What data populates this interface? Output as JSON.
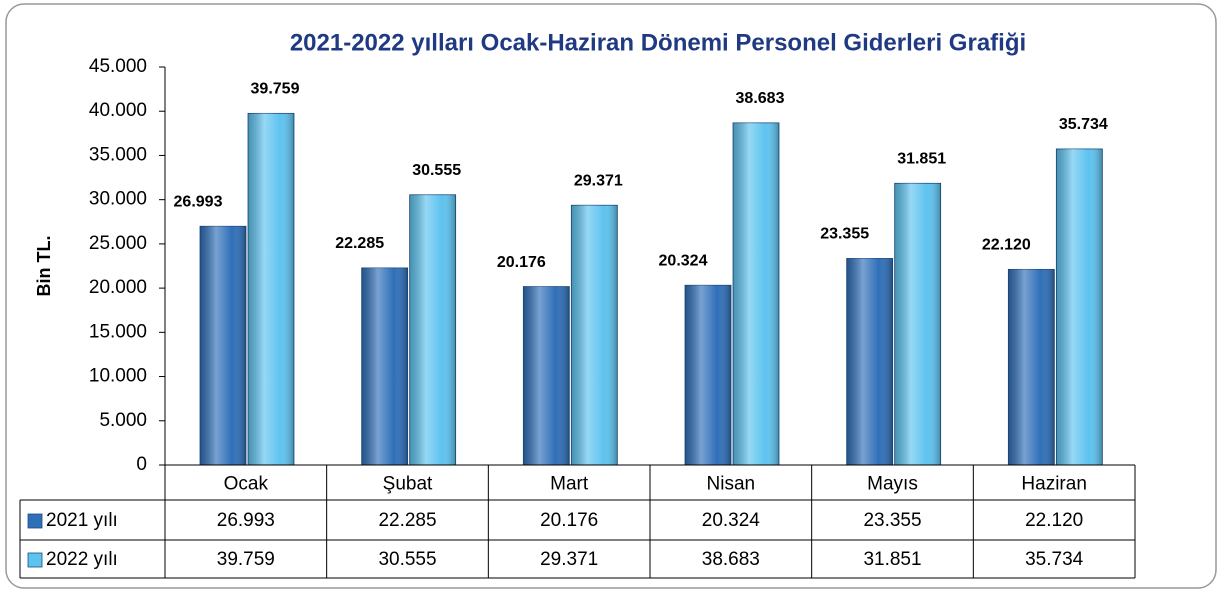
{
  "chart_data": {
    "type": "bar",
    "title": "2021-2022 yılları Ocak-Haziran Dönemi Personel Giderleri Grafiği",
    "ylabel": "Bin TL.",
    "categories": [
      "Ocak",
      "Şubat",
      "Mart",
      "Nisan",
      "Mayıs",
      "Haziran"
    ],
    "series": [
      {
        "name": "2021 yılı",
        "color": "#2f6fb8",
        "values": [
          26993,
          22285,
          20176,
          20324,
          23355,
          22120
        ],
        "value_labels": [
          "26.993",
          "22.285",
          "20.176",
          "20.324",
          "23.355",
          "22.120"
        ]
      },
      {
        "name": "2022 yılı",
        "color": "#5ec3ef",
        "values": [
          39759,
          30555,
          29371,
          38683,
          31851,
          35734
        ],
        "value_labels": [
          "39.759",
          "30.555",
          "29.371",
          "38.683",
          "31.851",
          "35.734"
        ]
      }
    ],
    "ylim": [
      0,
      45000
    ],
    "yticks": [
      0,
      {
        "value": 5000,
        "label": "5.000"
      },
      {
        "value": 10000,
        "label": "10.000"
      },
      {
        "value": 15000,
        "label": "15.000"
      },
      {
        "value": 20000,
        "label": "20.000"
      },
      {
        "value": 25000,
        "label": "25.000"
      },
      {
        "value": 30000,
        "label": "30.000"
      },
      {
        "value": 35000,
        "label": "35.000"
      },
      {
        "value": 40000,
        "label": "40.000"
      },
      {
        "value": 45000,
        "label": "45.000"
      }
    ],
    "data_table": true
  }
}
